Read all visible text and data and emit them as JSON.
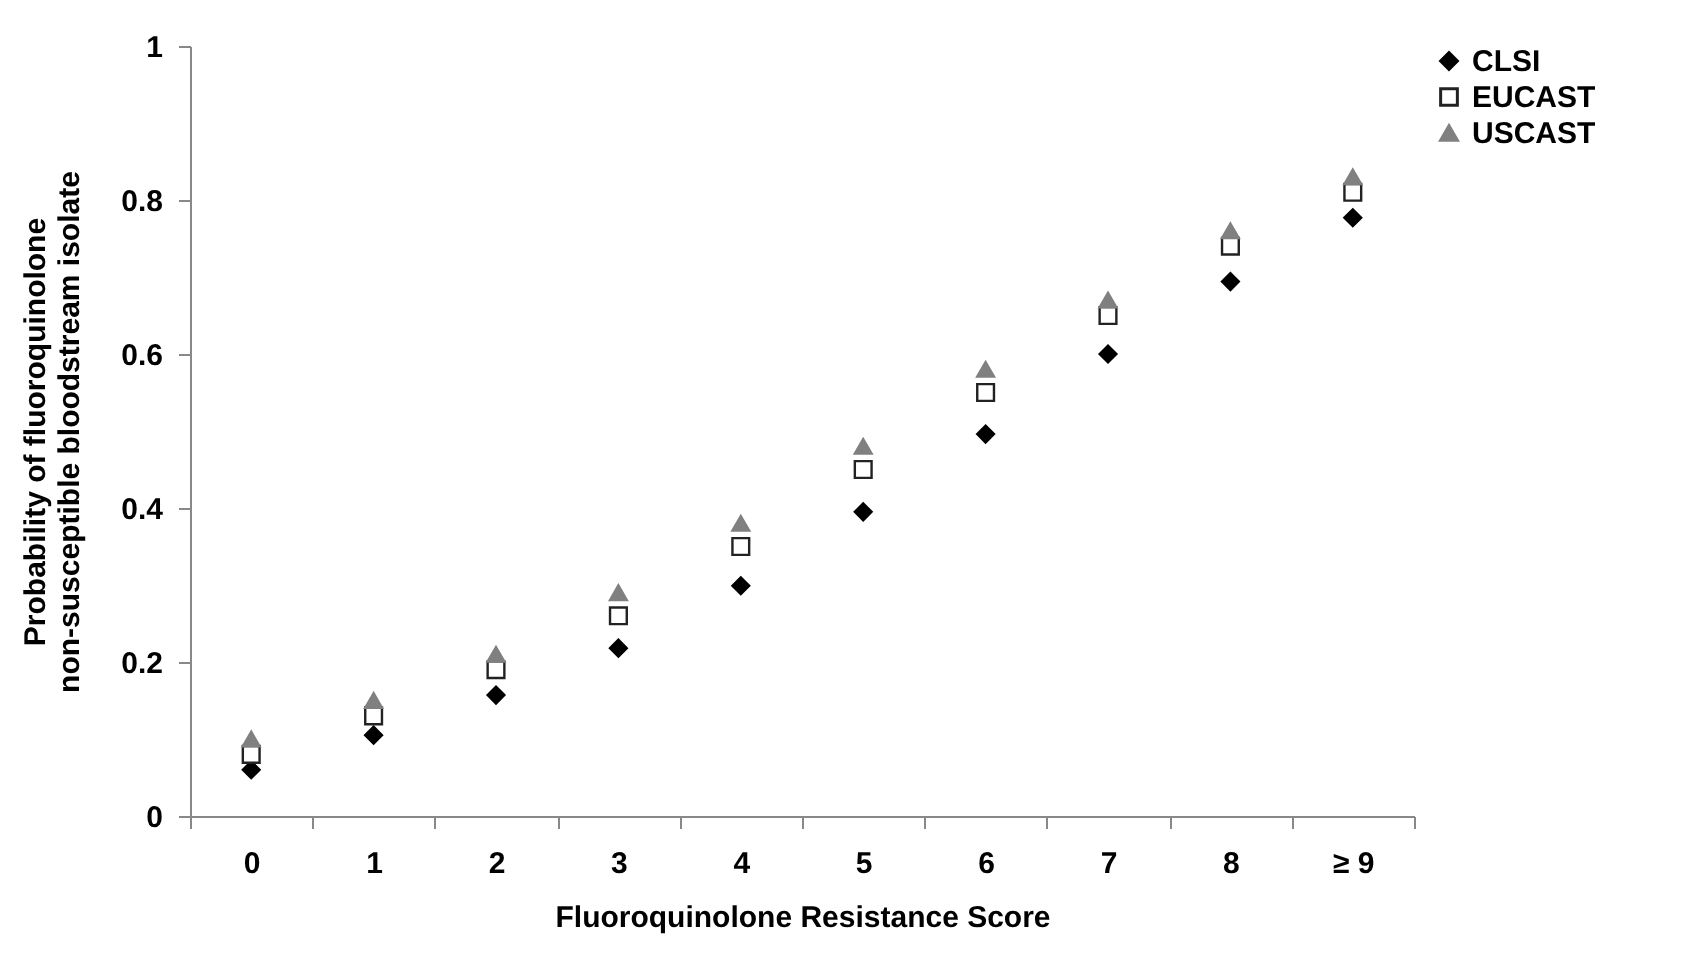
{
  "chart_data": {
    "type": "scatter",
    "xlabel": "Fluoroquinolone Resistance Score",
    "ylabel": "Probability of fluoroquinolone non-susceptible bloodstream isolate",
    "categories": [
      "0",
      "1",
      "2",
      "3",
      "4",
      "5",
      "6",
      "7",
      "8",
      "≥ 9"
    ],
    "series": [
      {
        "name": "CLSI",
        "color": "#000000",
        "marker": "diamond",
        "values": [
          0.06,
          0.105,
          0.157,
          0.218,
          0.299,
          0.395,
          0.496,
          0.6,
          0.694,
          0.777
        ]
      },
      {
        "name": "EUCAST",
        "color": "#222222",
        "marker": "square",
        "values": [
          0.08,
          0.13,
          0.19,
          0.26,
          0.35,
          0.45,
          0.55,
          0.65,
          0.74,
          0.81
        ]
      },
      {
        "name": "USCAST",
        "color": "#808080",
        "marker": "triangle",
        "values": [
          0.1,
          0.15,
          0.21,
          0.29,
          0.38,
          0.48,
          0.58,
          0.67,
          0.76,
          0.83
        ]
      }
    ],
    "ylim": [
      0,
      1
    ],
    "yticks": [
      0,
      0.2,
      0.4,
      0.6,
      0.8,
      {
        "value": 1,
        "label": "1"
      }
    ],
    "grid": false,
    "legend": "right"
  }
}
